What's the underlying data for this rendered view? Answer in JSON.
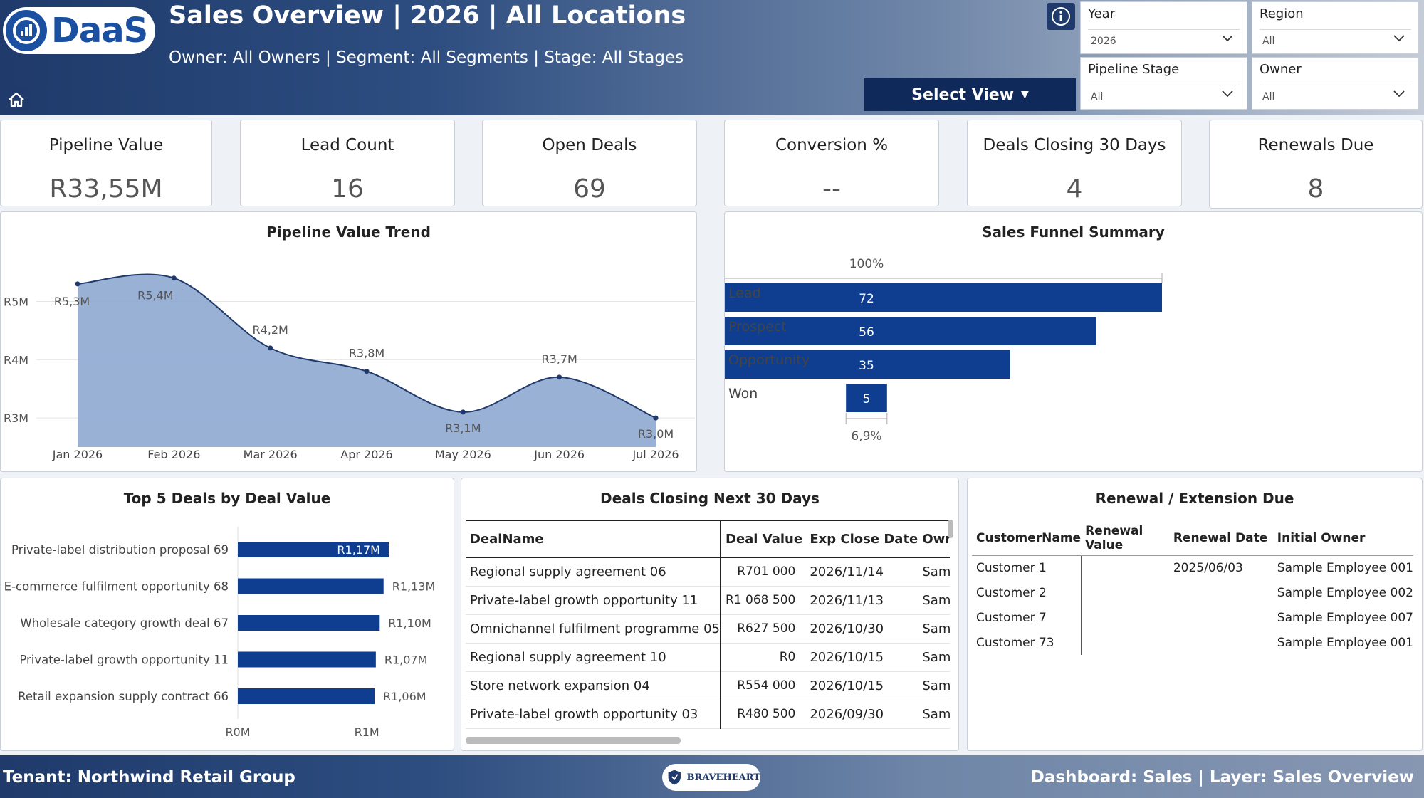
{
  "header": {
    "logo_text": "DaaS",
    "title": "Sales Overview | 2026 | All Locations",
    "subtitle": "Owner: All Owners | Segment: All Segments | Stage: All Stages",
    "select_view_label": "Select View",
    "filters": [
      {
        "label": "Year",
        "value": "2026"
      },
      {
        "label": "Region",
        "value": "All"
      },
      {
        "label": "Pipeline Stage",
        "value": "All"
      },
      {
        "label": "Owner",
        "value": "All"
      }
    ]
  },
  "kpis": [
    {
      "title": "Pipeline Value",
      "value": "R33,55M"
    },
    {
      "title": "Lead Count",
      "value": "16"
    },
    {
      "title": "Open Deals",
      "value": "69"
    },
    {
      "title": "Conversion %",
      "value": "--"
    },
    {
      "title": "Deals Closing 30 Days",
      "value": "4"
    },
    {
      "title": "Renewals Due",
      "value": "8"
    }
  ],
  "trend_panel": {
    "title": "Pipeline Value Trend"
  },
  "funnel_panel": {
    "title": "Sales Funnel Summary"
  },
  "topdeals_panel": {
    "title": "Top 5 Deals by Deal Value"
  },
  "closing_panel": {
    "title": "Deals Closing Next 30 Days"
  },
  "renewal_panel": {
    "title": "Renewal / Extension Due"
  },
  "chart_data": [
    {
      "type": "area",
      "title": "Pipeline Value Trend",
      "categories": [
        "Jan 2026",
        "Feb 2026",
        "Mar 2026",
        "Apr 2026",
        "May 2026",
        "Jun 2026",
        "Jul 2026"
      ],
      "values": [
        5.3,
        5.4,
        4.2,
        3.8,
        3.1,
        3.7,
        3.0
      ],
      "data_labels": [
        "R5,3M",
        "R5,4M",
        "R4,2M",
        "R3,8M",
        "R3,1M",
        "R3,7M",
        "R3,0M"
      ],
      "y_ticks": [
        3,
        4,
        5
      ],
      "y_tick_labels": [
        "R3M",
        "R4M",
        "R5M"
      ],
      "ylim": [
        2.5,
        5.8
      ],
      "color": "#8fa9d1",
      "line_color": "#1f3a6b"
    },
    {
      "type": "bar",
      "title": "Sales Funnel Summary",
      "orientation": "horizontal-funnel",
      "categories": [
        "Lead",
        "Prospect",
        "Opportunity",
        "Won"
      ],
      "values": [
        72,
        56,
        35,
        5
      ],
      "top_label": "100%",
      "bottom_label": "6,9%",
      "color": "#0f3e91"
    },
    {
      "type": "bar",
      "title": "Top 5 Deals by Deal Value",
      "orientation": "horizontal",
      "categories": [
        "Private-label distribution proposal 69",
        "E-commerce fulfilment opportunity 68",
        "Wholesale category growth deal 67",
        "Private-label growth opportunity 11",
        "Retail expansion supply contract 66"
      ],
      "values": [
        1.17,
        1.13,
        1.1,
        1.07,
        1.06
      ],
      "data_labels": [
        "R1,17M",
        "R1,13M",
        "R1,10M",
        "R1,07M",
        "R1,06M"
      ],
      "x_ticks": [
        0,
        1
      ],
      "x_tick_labels": [
        "R0M",
        "R1M"
      ],
      "xlim": [
        0,
        1.7
      ],
      "color": "#0f3e91"
    }
  ],
  "closing_table": {
    "headers": [
      "DealName",
      "Deal Value",
      "Exp Close Date",
      "Owr"
    ],
    "rows": [
      [
        "Regional supply agreement 06",
        "R701 000",
        "2026/11/14",
        "Samp"
      ],
      [
        "Private-label growth opportunity 11",
        "R1 068 500",
        "2026/11/13",
        "Samp"
      ],
      [
        "Omnichannel fulfilment programme 05",
        "R627 500",
        "2026/10/30",
        "Samp"
      ],
      [
        "Regional supply agreement 10",
        "R0",
        "2026/10/15",
        "Samp"
      ],
      [
        "Store network expansion 04",
        "R554 000",
        "2026/10/15",
        "Samp"
      ],
      [
        "Private-label growth opportunity 03",
        "R480 500",
        "2026/09/30",
        "Samp"
      ]
    ]
  },
  "renewal_table": {
    "headers": [
      "CustomerName",
      "Renewal Value",
      "Renewal Date",
      "Initial Owner"
    ],
    "rows": [
      [
        "Customer 1",
        "",
        "2025/06/03",
        "Sample Employee 001"
      ],
      [
        "Customer 2",
        "",
        "",
        "Sample Employee 002"
      ],
      [
        "Customer 7",
        "",
        "",
        "Sample Employee 007"
      ],
      [
        "Customer 73",
        "",
        "",
        "Sample Employee 001"
      ]
    ]
  },
  "footer": {
    "tenant": "Tenant: Northwind Retail Group",
    "dashboard": "Dashboard: Sales | Layer: Sales Overview",
    "partner_logo_text": "BRAVEHEART"
  },
  "colors": {
    "header_dark": "#1f3a6b",
    "bar": "#0f3e91",
    "area_fill": "#8fa9d1"
  }
}
